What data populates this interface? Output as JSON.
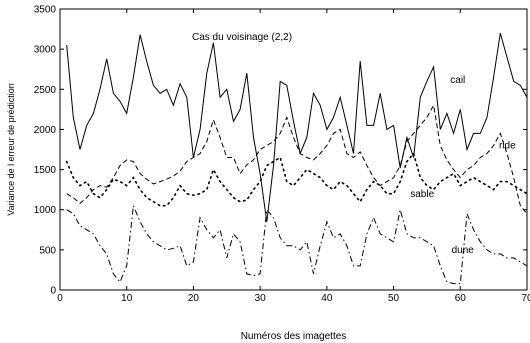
{
  "chart_data": {
    "type": "line",
    "title": "Cas du voisinage (2,2)",
    "xlabel": "Numéros des imagettes",
    "ylabel": "Variance de l erreur de prédiction",
    "xlim": [
      0,
      70
    ],
    "ylim": [
      0,
      3500
    ],
    "xticks": [
      "0",
      "10",
      "20",
      "30",
      "40",
      "50",
      "60",
      "70"
    ],
    "yticks": [
      "0",
      "500",
      "1000",
      "1500",
      "2000",
      "2500",
      "3000",
      "3500"
    ],
    "grid": false,
    "legend": "inline labels",
    "series": [
      {
        "name": "cail",
        "style": "solid",
        "x": [
          1,
          2,
          3,
          4,
          5,
          6,
          7,
          8,
          9,
          10,
          11,
          12,
          13,
          14,
          15,
          16,
          17,
          18,
          19,
          20,
          21,
          22,
          23,
          24,
          25,
          26,
          27,
          28,
          29,
          30,
          31,
          32,
          33,
          34,
          35,
          36,
          37,
          38,
          39,
          40,
          41,
          42,
          43,
          44,
          45,
          46,
          47,
          48,
          49,
          50,
          51,
          52,
          53,
          54,
          55,
          56,
          57,
          58,
          59,
          60,
          61,
          62,
          63,
          64,
          65,
          66,
          67,
          68,
          69,
          70
        ],
        "values": [
          3050,
          2150,
          1750,
          2050,
          2200,
          2500,
          2880,
          2450,
          2350,
          2200,
          2650,
          3180,
          2850,
          2550,
          2450,
          2500,
          2300,
          2570,
          2400,
          1650,
          2000,
          2700,
          3080,
          2400,
          2500,
          2100,
          2250,
          2700,
          1900,
          1450,
          850,
          1550,
          2600,
          2550,
          2100,
          1700,
          1900,
          2450,
          2300,
          2000,
          2150,
          2400,
          2050,
          1700,
          2850,
          2050,
          2050,
          2450,
          2000,
          2050,
          1520,
          1900,
          1650,
          2400,
          2600,
          2780,
          2000,
          2200,
          1950,
          2250,
          1750,
          1950,
          1950,
          2150,
          2650,
          3200,
          2900,
          2600,
          2550,
          2400
        ]
      },
      {
        "name": "ride",
        "style": "dashed",
        "x": [
          1,
          2,
          3,
          4,
          5,
          6,
          7,
          8,
          9,
          10,
          11,
          12,
          13,
          14,
          15,
          16,
          17,
          18,
          19,
          20,
          21,
          22,
          23,
          24,
          25,
          26,
          27,
          28,
          29,
          30,
          31,
          32,
          33,
          34,
          35,
          36,
          37,
          38,
          39,
          40,
          41,
          42,
          43,
          44,
          45,
          46,
          47,
          48,
          49,
          50,
          51,
          52,
          53,
          54,
          55,
          56,
          57,
          58,
          59,
          60,
          61,
          62,
          63,
          64,
          65,
          66,
          67,
          68,
          69,
          70
        ],
        "values": [
          1200,
          1150,
          1080,
          1150,
          1250,
          1300,
          1280,
          1400,
          1550,
          1620,
          1600,
          1450,
          1380,
          1320,
          1350,
          1380,
          1420,
          1480,
          1600,
          1650,
          1700,
          1850,
          2120,
          1900,
          1650,
          1650,
          1450,
          1560,
          1620,
          1750,
          1800,
          1850,
          1950,
          2150,
          1900,
          1700,
          1650,
          1620,
          1700,
          1800,
          1950,
          2000,
          1700,
          1650,
          1720,
          1550,
          1400,
          1300,
          1350,
          1400,
          1550,
          1850,
          1950,
          2050,
          2150,
          2300,
          1800,
          1620,
          1500,
          1400,
          1500,
          1550,
          1650,
          1700,
          1800,
          1950,
          1700,
          1400,
          1050,
          950
        ]
      },
      {
        "name": "sable",
        "style": "dotted",
        "x": [
          1,
          2,
          3,
          4,
          5,
          6,
          7,
          8,
          9,
          10,
          11,
          12,
          13,
          14,
          15,
          16,
          17,
          18,
          19,
          20,
          21,
          22,
          23,
          24,
          25,
          26,
          27,
          28,
          29,
          30,
          31,
          32,
          33,
          34,
          35,
          36,
          37,
          38,
          39,
          40,
          41,
          42,
          43,
          44,
          45,
          46,
          47,
          48,
          49,
          50,
          51,
          52,
          53,
          54,
          55,
          56,
          57,
          58,
          59,
          60,
          61,
          62,
          63,
          64,
          65,
          66,
          67,
          68,
          69,
          70
        ],
        "values": [
          1600,
          1400,
          1300,
          1350,
          1200,
          1150,
          1250,
          1380,
          1350,
          1300,
          1400,
          1250,
          1150,
          1100,
          1050,
          1050,
          1150,
          1300,
          1200,
          1180,
          1200,
          1250,
          1500,
          1350,
          1250,
          1150,
          1100,
          1120,
          1250,
          1350,
          1550,
          1600,
          1650,
          1350,
          1300,
          1400,
          1500,
          1450,
          1400,
          1300,
          1250,
          1350,
          1300,
          1200,
          1100,
          1250,
          1350,
          1300,
          1200,
          1200,
          1350,
          1600,
          1700,
          1400,
          1300,
          1250,
          1350,
          1400,
          1450,
          1300,
          1350,
          1400,
          1350,
          1300,
          1250,
          1350,
          1350,
          1300,
          1250,
          1200
        ]
      },
      {
        "name": "dune",
        "style": "dashdot",
        "x": [
          1,
          2,
          3,
          4,
          5,
          6,
          7,
          8,
          9,
          10,
          11,
          12,
          13,
          14,
          15,
          16,
          17,
          18,
          19,
          20,
          21,
          22,
          23,
          24,
          25,
          26,
          27,
          28,
          29,
          30,
          31,
          32,
          33,
          34,
          35,
          36,
          37,
          38,
          39,
          40,
          41,
          42,
          43,
          44,
          45,
          46,
          47,
          48,
          49,
          50,
          51,
          52,
          53,
          54,
          55,
          56,
          57,
          58,
          59,
          60,
          61,
          62,
          63,
          64,
          65,
          66,
          67,
          68,
          69,
          70
        ],
        "values": [
          1000,
          950,
          800,
          750,
          700,
          550,
          450,
          200,
          100,
          300,
          1050,
          850,
          700,
          600,
          550,
          500,
          520,
          550,
          300,
          350,
          900,
          750,
          650,
          750,
          400,
          700,
          600,
          200,
          180,
          200,
          1000,
          900,
          650,
          550,
          550,
          500,
          600,
          200,
          550,
          850,
          650,
          700,
          550,
          300,
          300,
          700,
          900,
          700,
          650,
          600,
          1000,
          700,
          650,
          650,
          600,
          550,
          300,
          100,
          80,
          80,
          950,
          750,
          600,
          500,
          450,
          450,
          400,
          400,
          350,
          300
        ]
      }
    ],
    "annotations": [
      {
        "text": "cail",
        "x": 58.5,
        "y": 2580
      },
      {
        "text": "ride",
        "x": 65.8,
        "y": 1760
      },
      {
        "text": "sable",
        "x": 52.5,
        "y": 1160
      },
      {
        "text": "dune",
        "x": 58.7,
        "y": 460
      }
    ]
  }
}
